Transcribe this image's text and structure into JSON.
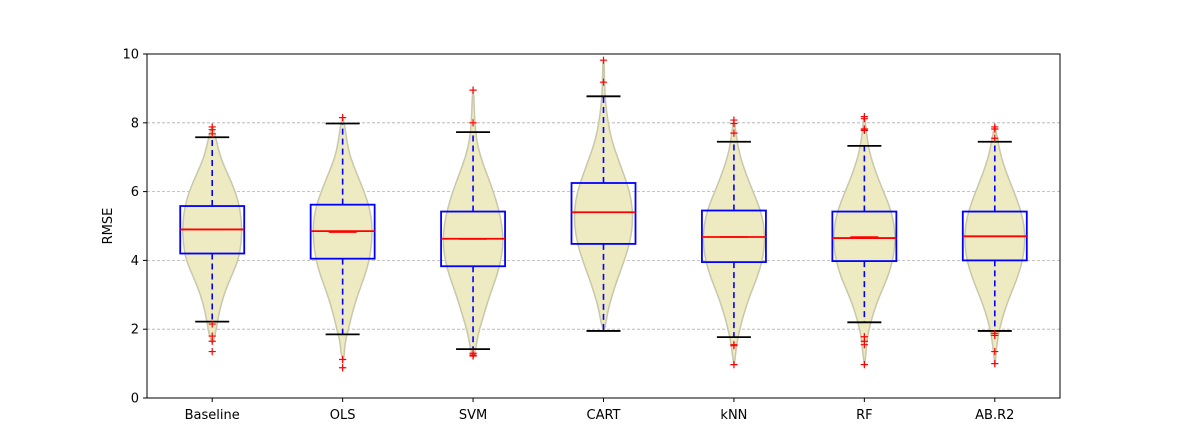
{
  "chart_data": {
    "type": "violin-box",
    "ylabel": "RMSE",
    "xlabel": "",
    "title": "",
    "ylim": [
      0,
      10
    ],
    "yticks": [
      0,
      2,
      4,
      6,
      8,
      10
    ],
    "grid": "horizontal-dashed",
    "colors": {
      "violin_fill": "#eeebc3",
      "violin_edge": "#c9c7aa",
      "box": "#0000ff",
      "median": "#ff0000",
      "mean": "#ff0000",
      "whisker_cap": "#000000",
      "outlier": "#ff0000",
      "grid": "#b0b0b0"
    },
    "categories": [
      "Baseline",
      "OLS",
      "SVM",
      "CART",
      "kNN",
      "RF",
      "AB.R2"
    ],
    "series": [
      {
        "q1": 4.2,
        "median": 4.9,
        "q3": 5.58,
        "mean": 4.9,
        "whisker_low": 2.22,
        "whisker_high": 7.58,
        "outliers": [
          7.88,
          7.8,
          7.68,
          2.15,
          1.8,
          1.65,
          1.35
        ],
        "violin": [
          [
            1.6,
            0.02
          ],
          [
            2.0,
            0.07
          ],
          [
            2.5,
            0.12
          ],
          [
            3.0,
            0.2
          ],
          [
            3.5,
            0.32
          ],
          [
            4.0,
            0.45
          ],
          [
            4.5,
            0.5
          ],
          [
            5.0,
            0.51
          ],
          [
            5.5,
            0.48
          ],
          [
            6.0,
            0.4
          ],
          [
            6.5,
            0.27
          ],
          [
            7.0,
            0.14
          ],
          [
            7.5,
            0.07
          ],
          [
            7.85,
            0.02
          ]
        ]
      },
      {
        "q1": 4.05,
        "median": 4.85,
        "q3": 5.62,
        "mean": 4.82,
        "whisker_low": 1.85,
        "whisker_high": 7.98,
        "outliers": [
          8.15,
          1.12,
          0.88
        ],
        "violin": [
          [
            1.1,
            0.02
          ],
          [
            1.6,
            0.04
          ],
          [
            2.0,
            0.1
          ],
          [
            2.5,
            0.17
          ],
          [
            3.0,
            0.26
          ],
          [
            3.5,
            0.37
          ],
          [
            4.0,
            0.46
          ],
          [
            4.5,
            0.5
          ],
          [
            5.0,
            0.51
          ],
          [
            5.5,
            0.47
          ],
          [
            6.0,
            0.37
          ],
          [
            6.5,
            0.25
          ],
          [
            7.0,
            0.13
          ],
          [
            7.5,
            0.07
          ],
          [
            8.1,
            0.02
          ]
        ]
      },
      {
        "q1": 3.83,
        "median": 4.63,
        "q3": 5.42,
        "mean": 4.62,
        "whisker_low": 1.42,
        "whisker_high": 7.73,
        "outliers": [
          8.95,
          8.0,
          1.3,
          1.25,
          1.22
        ],
        "violin": [
          [
            1.2,
            0.02
          ],
          [
            1.6,
            0.06
          ],
          [
            2.0,
            0.11
          ],
          [
            2.5,
            0.2
          ],
          [
            3.0,
            0.29
          ],
          [
            3.5,
            0.4
          ],
          [
            4.0,
            0.48
          ],
          [
            4.5,
            0.52
          ],
          [
            5.0,
            0.5
          ],
          [
            5.5,
            0.44
          ],
          [
            6.0,
            0.35
          ],
          [
            6.5,
            0.24
          ],
          [
            7.0,
            0.13
          ],
          [
            7.5,
            0.06
          ],
          [
            8.0,
            0.03
          ],
          [
            8.9,
            0.01
          ]
        ]
      },
      {
        "q1": 4.48,
        "median": 5.4,
        "q3": 6.25,
        "mean": 5.4,
        "whisker_low": 1.95,
        "whisker_high": 8.77,
        "outliers": [
          9.82,
          9.18
        ],
        "violin": [
          [
            1.95,
            0.02
          ],
          [
            2.5,
            0.07
          ],
          [
            3.0,
            0.15
          ],
          [
            3.5,
            0.25
          ],
          [
            4.0,
            0.36
          ],
          [
            4.5,
            0.45
          ],
          [
            5.0,
            0.5
          ],
          [
            5.5,
            0.5
          ],
          [
            6.0,
            0.45
          ],
          [
            6.5,
            0.35
          ],
          [
            7.0,
            0.24
          ],
          [
            7.5,
            0.14
          ],
          [
            8.0,
            0.08
          ],
          [
            8.5,
            0.04
          ],
          [
            9.0,
            0.02
          ],
          [
            9.8,
            0.01
          ]
        ]
      },
      {
        "q1": 3.95,
        "median": 4.68,
        "q3": 5.45,
        "mean": 4.68,
        "whisker_low": 1.77,
        "whisker_high": 7.45,
        "outliers": [
          8.08,
          7.98,
          7.7,
          1.55,
          1.52,
          0.97
        ],
        "violin": [
          [
            0.97,
            0.01
          ],
          [
            1.5,
            0.04
          ],
          [
            2.0,
            0.1
          ],
          [
            2.5,
            0.18
          ],
          [
            3.0,
            0.28
          ],
          [
            3.5,
            0.4
          ],
          [
            4.0,
            0.49
          ],
          [
            4.5,
            0.53
          ],
          [
            5.0,
            0.52
          ],
          [
            5.5,
            0.45
          ],
          [
            6.0,
            0.33
          ],
          [
            6.5,
            0.21
          ],
          [
            7.0,
            0.11
          ],
          [
            7.5,
            0.05
          ],
          [
            8.05,
            0.01
          ]
        ]
      },
      {
        "q1": 3.98,
        "median": 4.65,
        "q3": 5.42,
        "mean": 4.68,
        "whisker_low": 2.2,
        "whisker_high": 7.33,
        "outliers": [
          8.18,
          8.12,
          7.82,
          7.78,
          1.78,
          1.65,
          1.55,
          0.97
        ],
        "violin": [
          [
            0.97,
            0.01
          ],
          [
            1.6,
            0.04
          ],
          [
            2.0,
            0.08
          ],
          [
            2.5,
            0.16
          ],
          [
            3.0,
            0.27
          ],
          [
            3.5,
            0.4
          ],
          [
            4.0,
            0.49
          ],
          [
            4.5,
            0.53
          ],
          [
            5.0,
            0.52
          ],
          [
            5.5,
            0.45
          ],
          [
            6.0,
            0.33
          ],
          [
            6.5,
            0.21
          ],
          [
            7.0,
            0.11
          ],
          [
            7.5,
            0.05
          ],
          [
            8.15,
            0.01
          ]
        ]
      },
      {
        "q1": 4.0,
        "median": 4.7,
        "q3": 5.42,
        "mean": 4.7,
        "whisker_low": 1.95,
        "whisker_high": 7.45,
        "outliers": [
          7.88,
          7.82,
          7.55,
          1.88,
          1.82,
          1.35,
          1.0
        ],
        "violin": [
          [
            1.0,
            0.01
          ],
          [
            1.5,
            0.03
          ],
          [
            2.0,
            0.08
          ],
          [
            2.5,
            0.16
          ],
          [
            3.0,
            0.27
          ],
          [
            3.5,
            0.39
          ],
          [
            4.0,
            0.48
          ],
          [
            4.5,
            0.52
          ],
          [
            5.0,
            0.51
          ],
          [
            5.5,
            0.44
          ],
          [
            6.0,
            0.33
          ],
          [
            6.5,
            0.21
          ],
          [
            7.0,
            0.11
          ],
          [
            7.5,
            0.05
          ],
          [
            7.88,
            0.01
          ]
        ]
      }
    ]
  }
}
